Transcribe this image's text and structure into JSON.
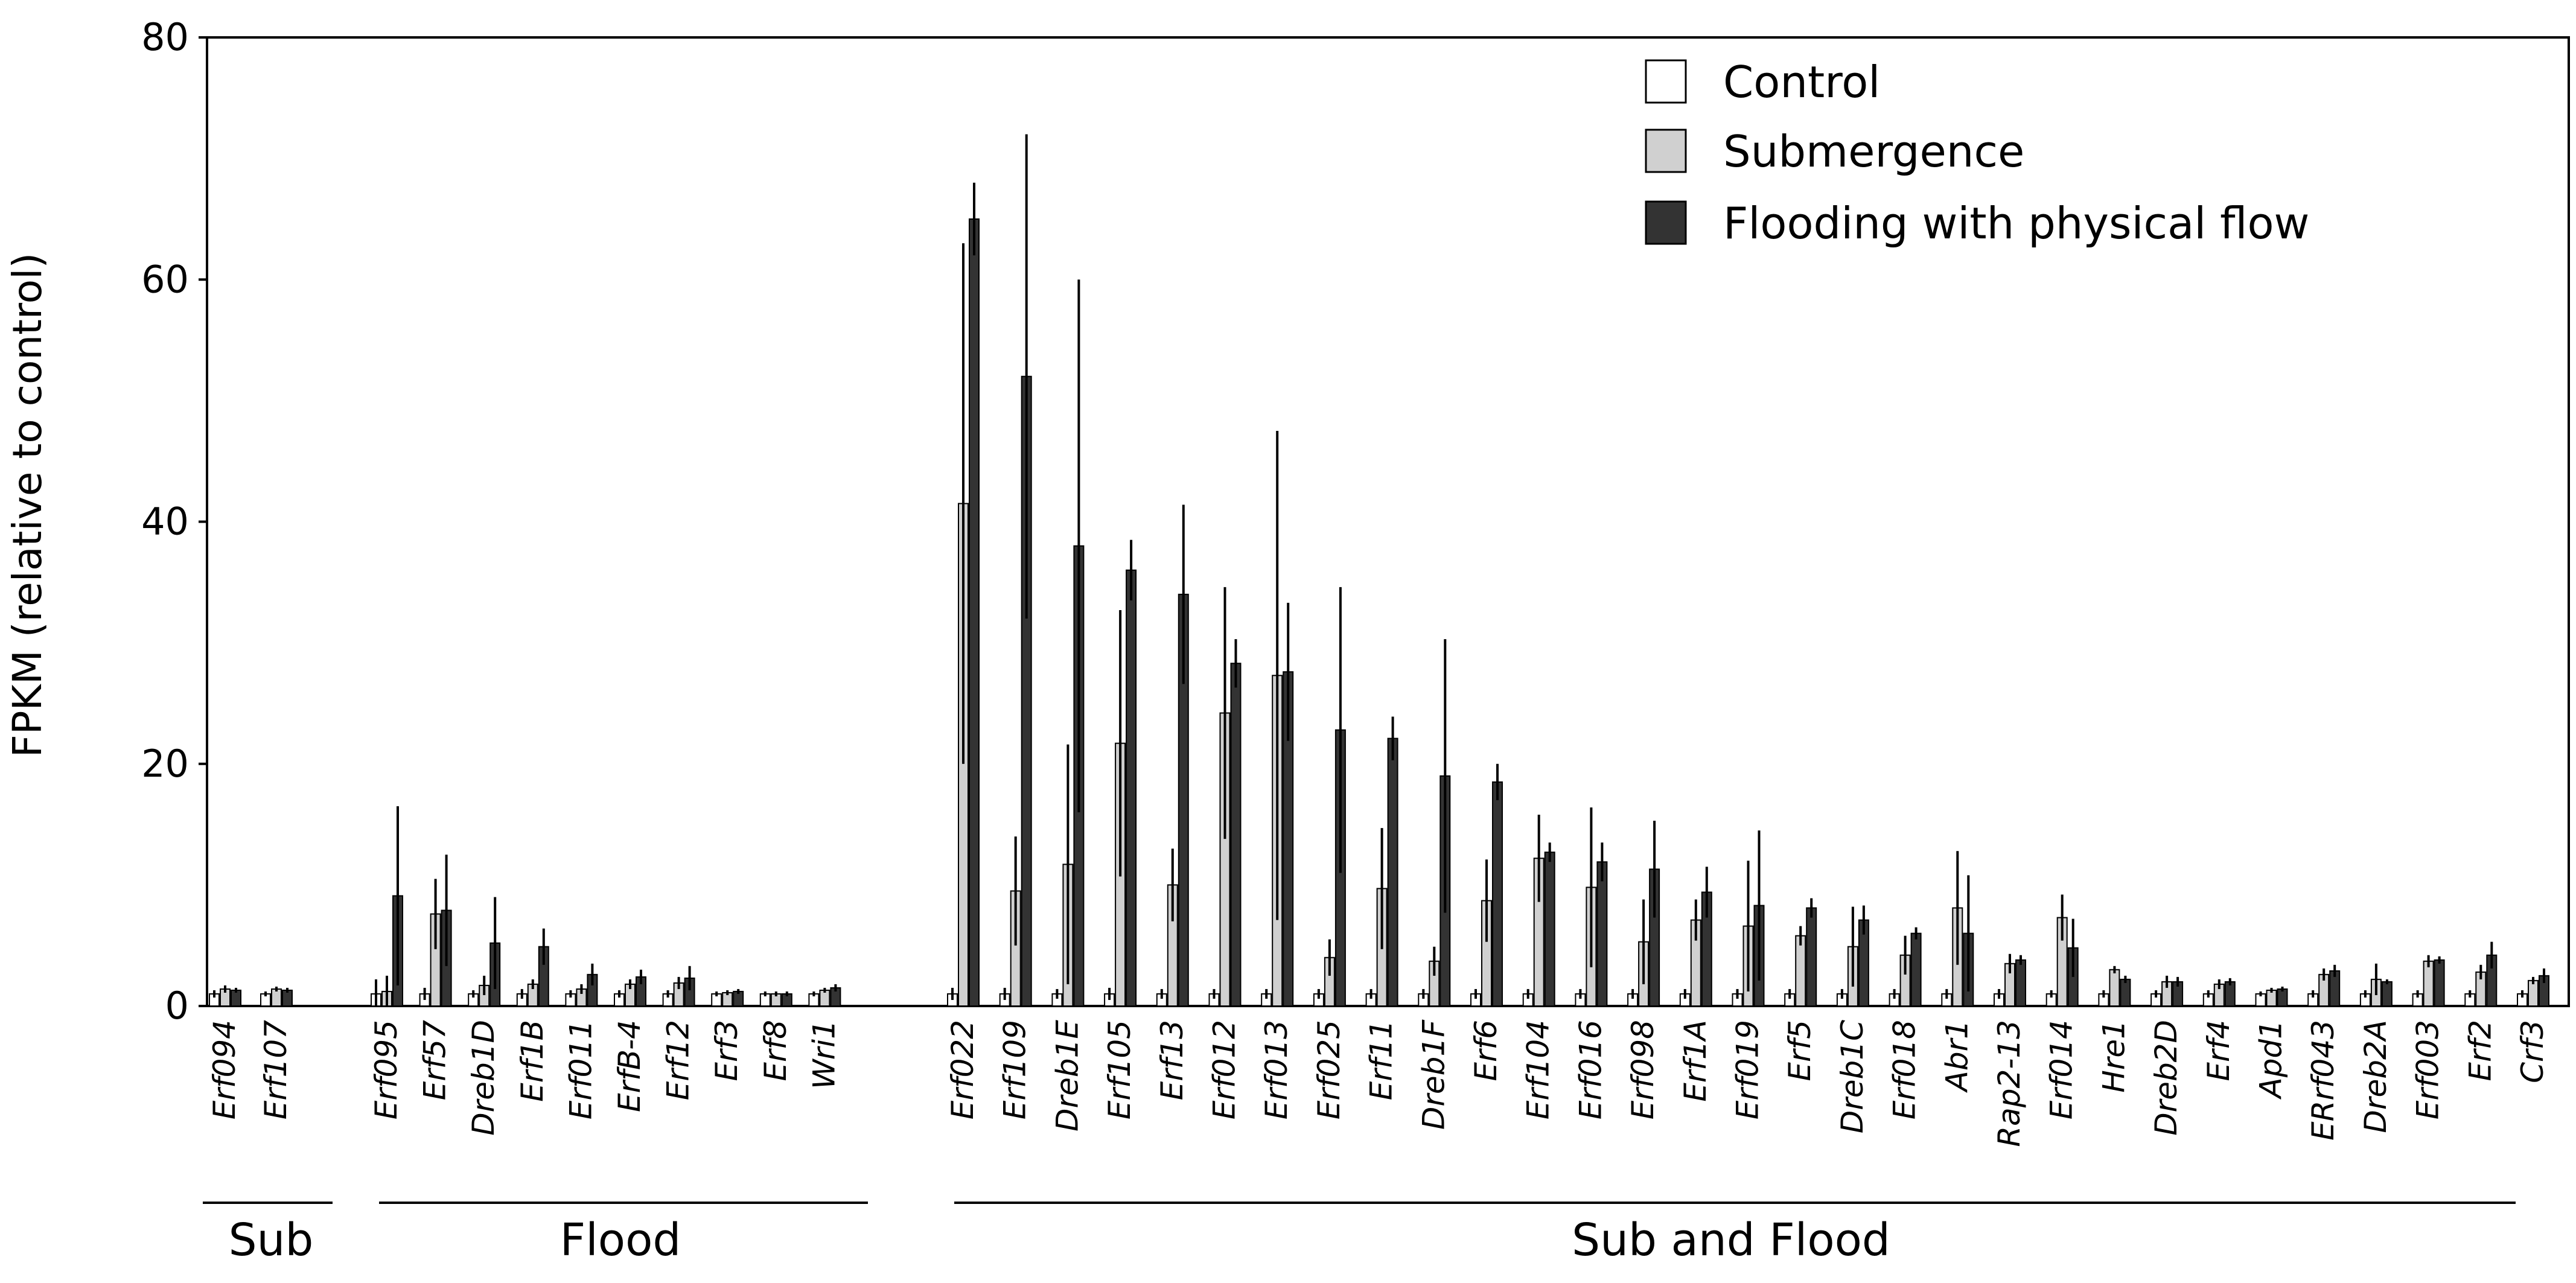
{
  "chart_data": {
    "type": "bar",
    "title": "",
    "xlabel": "",
    "ylabel": "FPKM (relative to control)",
    "ylim": [
      0,
      80
    ],
    "yticks": [
      "0",
      "20",
      "40",
      "60",
      "80"
    ],
    "legend_position": "top-right",
    "grid": false,
    "categories": [
      "Erf094",
      "Erf107",
      "Erf095",
      "Erf57",
      "Dreb1D",
      "Erf1B",
      "Erf011",
      "ErfB-4",
      "Erf12",
      "Erf3",
      "Erf8",
      "Wri1",
      "Erf022",
      "Erf109",
      "Dreb1E",
      "Erf105",
      "Erf13",
      "Erf012",
      "Erf013",
      "Erf025",
      "Erf11",
      "Dreb1F",
      "Erf6",
      "Erf104",
      "Erf016",
      "Erf098",
      "Erf1A",
      "Erf019",
      "Erf5",
      "Dreb1C",
      "Erf018",
      "Abr1",
      "Rap2-13",
      "Erf014",
      "Hre1",
      "Dreb2D",
      "Erf4",
      "Apd1",
      "ERrf043",
      "Dreb2A",
      "Erf003",
      "Erf2",
      "Crf3"
    ],
    "series": [
      {
        "name": "Control",
        "color": "#ffffff",
        "values": [
          1,
          1,
          1,
          1,
          1,
          1,
          1,
          1,
          1,
          1,
          1,
          1,
          1,
          1,
          1,
          1,
          1,
          1,
          1,
          1,
          1,
          1,
          1,
          1,
          1,
          1,
          1,
          1,
          1,
          1,
          1,
          1,
          1,
          1,
          1,
          1,
          1,
          1,
          1,
          1,
          1,
          1,
          1
        ]
      },
      {
        "name": "Submergence",
        "color": "#d0d0d0",
        "values": [
          1.4,
          1.4,
          1.2,
          7.6,
          1.7,
          1.8,
          1.4,
          1.8,
          1.9,
          1.1,
          1.0,
          1.3,
          41.5,
          9.5,
          11.7,
          21.7,
          10.0,
          24.2,
          27.3,
          4.0,
          9.7,
          3.7,
          8.7,
          12.2,
          9.8,
          5.3,
          7.1,
          6.6,
          5.8,
          4.9,
          4.2,
          8.1,
          3.5,
          7.3,
          3.0,
          2.0,
          1.8,
          1.3,
          2.6,
          2.2,
          3.7,
          2.8,
          2.1
        ]
      },
      {
        "name": "Flooding with physical flow",
        "color": "#333333",
        "values": [
          1.3,
          1.3,
          9.1,
          7.9,
          5.2,
          4.9,
          2.6,
          2.4,
          2.3,
          1.2,
          1.0,
          1.5,
          65.0,
          52.0,
          38.0,
          36.0,
          34.0,
          28.3,
          27.6,
          22.8,
          22.1,
          19.0,
          18.5,
          12.7,
          11.9,
          11.3,
          9.4,
          8.3,
          8.1,
          7.1,
          6.0,
          6.0,
          3.8,
          4.8,
          2.2,
          2.0,
          2.0,
          1.4,
          2.9,
          2.0,
          3.8,
          4.2,
          2.5
        ]
      }
    ],
    "errors": [
      [
        0.3,
        0.2,
        1.2,
        0.5,
        0.3,
        0.4,
        0.3,
        0.3,
        0.3,
        0.2,
        0.2,
        0.2,
        0.5,
        0.5,
        0.4,
        0.5,
        0.4,
        0.4,
        0.4,
        0.4,
        0.4,
        0.4,
        0.4,
        0.4,
        0.4,
        0.4,
        0.4,
        0.4,
        0.4,
        0.4,
        0.4,
        0.4,
        0.4,
        0.3,
        0.3,
        0.3,
        0.3,
        0.2,
        0.3,
        0.3,
        0.3,
        0.3,
        0.3
      ],
      [
        0.3,
        0.2,
        1.3,
        2.9,
        0.8,
        0.4,
        0.4,
        0.4,
        0.5,
        0.2,
        0.2,
        0.2,
        21.5,
        4.5,
        9.9,
        11.0,
        3.0,
        10.4,
        20.2,
        1.5,
        5.0,
        1.2,
        3.4,
        3.6,
        6.6,
        3.5,
        1.7,
        5.4,
        0.8,
        3.3,
        1.6,
        4.7,
        0.8,
        1.9,
        0.3,
        0.5,
        0.4,
        0.2,
        0.5,
        1.3,
        0.5,
        0.6,
        0.3
      ],
      [
        0.2,
        0.2,
        7.4,
        4.6,
        3.8,
        1.5,
        0.9,
        0.6,
        1.0,
        0.2,
        0.2,
        0.3,
        3.0,
        20.0,
        22.0,
        2.5,
        7.4,
        2.0,
        5.7,
        11.8,
        1.8,
        11.3,
        1.5,
        0.8,
        1.6,
        4.0,
        2.1,
        6.2,
        0.8,
        1.2,
        0.5,
        4.8,
        0.4,
        2.4,
        0.3,
        0.4,
        0.3,
        0.2,
        0.5,
        0.2,
        0.3,
        1.1,
        0.6
      ]
    ],
    "groups": [
      {
        "label": "Sub",
        "start": 0,
        "end": 1
      },
      {
        "label": "Flood",
        "start": 2,
        "end": 11
      },
      {
        "label": "Sub and Flood",
        "start": 12,
        "end": 42
      }
    ]
  }
}
